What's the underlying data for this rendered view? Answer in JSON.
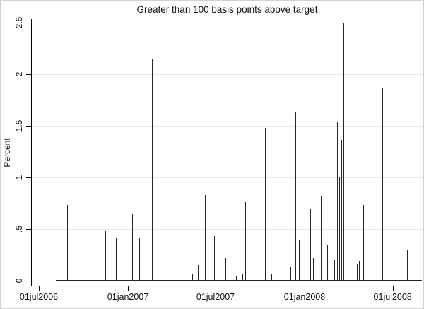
{
  "chart_data": {
    "type": "line",
    "subtype": "spike-plot",
    "title": "Greater than 100 basis points above target",
    "xlabel": "",
    "ylabel": "Percent",
    "legend": "none",
    "grid": "horizontal-light",
    "line_color": "#262626",
    "grid_color": "#e9e9e9",
    "background_color": "#ffffff",
    "ylim": [
      -0.055,
      2.535
    ],
    "xlim": [
      "2006-06-16",
      "2008-08-31"
    ],
    "yticks": [
      {
        "label": "0",
        "value": 0
      },
      {
        "label": ".5",
        "value": 0.5
      },
      {
        "label": "1",
        "value": 1
      },
      {
        "label": "1.5",
        "value": 1.5
      },
      {
        "label": "2",
        "value": 2
      },
      {
        "label": "2.5",
        "value": 2.5
      }
    ],
    "xticks": [
      {
        "label": "01jul2006",
        "date": "2006-07-01"
      },
      {
        "label": "01jan2007",
        "date": "2007-01-01"
      },
      {
        "label": "01jul2007",
        "date": "2007-07-01"
      },
      {
        "label": "01jan2008",
        "date": "2008-01-01"
      },
      {
        "label": "01jul2008",
        "date": "2008-07-01"
      }
    ],
    "baseline": {
      "value": 0,
      "start": "2006-08-05",
      "end": "2008-08-31"
    },
    "points": [
      {
        "date": "2006-08-28",
        "value": 0.73
      },
      {
        "date": "2006-09-09",
        "value": 0.52
      },
      {
        "date": "2006-11-15",
        "value": 0.48
      },
      {
        "date": "2006-12-07",
        "value": 0.41
      },
      {
        "date": "2006-12-28",
        "value": 1.78
      },
      {
        "date": "2007-01-03",
        "value": 0.1
      },
      {
        "date": "2007-01-07",
        "value": 0.05
      },
      {
        "date": "2007-01-10",
        "value": 0.65
      },
      {
        "date": "2007-01-13",
        "value": 1.01
      },
      {
        "date": "2007-01-24",
        "value": 0.42
      },
      {
        "date": "2007-02-07",
        "value": 0.09
      },
      {
        "date": "2007-02-20",
        "value": 2.15
      },
      {
        "date": "2007-03-08",
        "value": 0.3
      },
      {
        "date": "2007-04-11",
        "value": 0.65
      },
      {
        "date": "2007-05-14",
        "value": 0.06
      },
      {
        "date": "2007-05-26",
        "value": 0.15
      },
      {
        "date": "2007-06-09",
        "value": 0.83
      },
      {
        "date": "2007-06-21",
        "value": 0.14
      },
      {
        "date": "2007-06-28",
        "value": 0.43
      },
      {
        "date": "2007-07-05",
        "value": 0.33
      },
      {
        "date": "2007-07-21",
        "value": 0.22
      },
      {
        "date": "2007-08-13",
        "value": 0.04
      },
      {
        "date": "2007-08-25",
        "value": 0.06
      },
      {
        "date": "2007-08-31",
        "value": 0.76
      },
      {
        "date": "2007-10-09",
        "value": 0.21
      },
      {
        "date": "2007-10-11",
        "value": 1.48
      },
      {
        "date": "2007-10-24",
        "value": 0.06
      },
      {
        "date": "2007-11-06",
        "value": 0.13
      },
      {
        "date": "2007-12-03",
        "value": 0.14
      },
      {
        "date": "2007-12-13",
        "value": 1.63
      },
      {
        "date": "2007-12-21",
        "value": 0.39
      },
      {
        "date": "2008-01-01",
        "value": 0.06
      },
      {
        "date": "2008-01-13",
        "value": 0.7
      },
      {
        "date": "2008-01-18",
        "value": 0.22
      },
      {
        "date": "2008-02-03",
        "value": 0.82
      },
      {
        "date": "2008-02-17",
        "value": 0.35
      },
      {
        "date": "2008-03-02",
        "value": 0.2
      },
      {
        "date": "2008-03-08",
        "value": 1.54
      },
      {
        "date": "2008-03-12",
        "value": 1.0
      },
      {
        "date": "2008-03-17",
        "value": 1.36
      },
      {
        "date": "2008-03-21",
        "value": 2.49
      },
      {
        "date": "2008-03-25",
        "value": 0.84
      },
      {
        "date": "2008-04-05",
        "value": 2.26
      },
      {
        "date": "2008-04-18",
        "value": 0.16
      },
      {
        "date": "2008-04-22",
        "value": 0.19
      },
      {
        "date": "2008-05-01",
        "value": 0.73
      },
      {
        "date": "2008-05-14",
        "value": 0.98
      },
      {
        "date": "2008-06-09",
        "value": 1.87
      },
      {
        "date": "2008-07-30",
        "value": 0.3
      }
    ]
  }
}
